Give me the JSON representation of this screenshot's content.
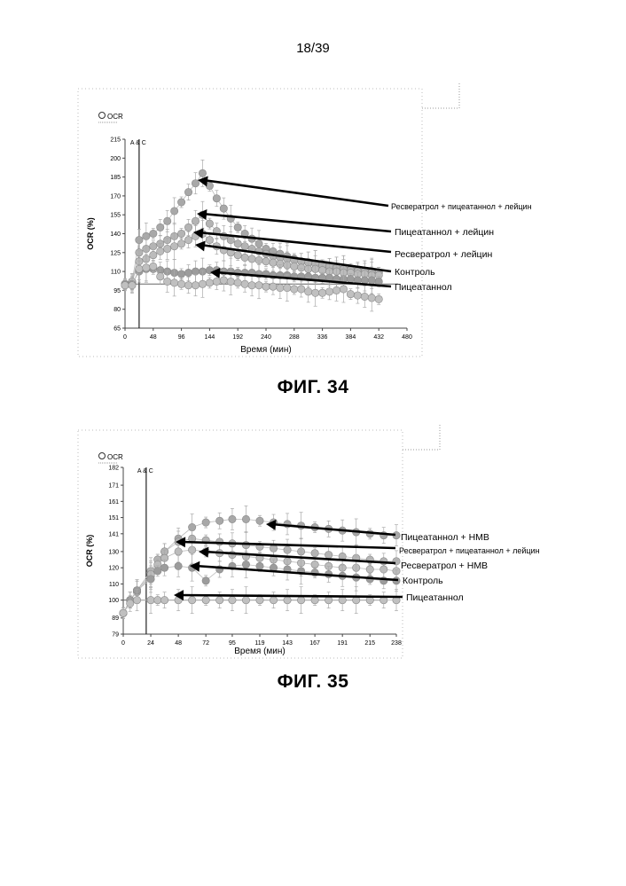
{
  "page_number": "18/39",
  "figures": [
    {
      "caption": "ФИГ. 34",
      "legend_label": "OCR",
      "marker_label": "A & C",
      "annotations": [
        "Ресвератрол + пицеатаннол + лейцин",
        "Пицеатаннол + лейцин",
        "Ресвератрол + лейцин",
        "Контроль",
        "Пицеатаннол"
      ]
    },
    {
      "caption": "ФИГ. 35",
      "legend_label": "OCR",
      "marker_label": "A & C",
      "annotations": [
        "Пицеатаннол + HMB",
        "Ресвератрол + пицеатаннол + лейцин",
        "Ресвератрол + HMB",
        "Контроль",
        "Пицеатаннол"
      ]
    }
  ],
  "chart_data": [
    {
      "type": "scatter",
      "title": "",
      "xlabel": "Время (мин)",
      "ylabel": "OCR (%)",
      "x_ticks": [
        0,
        48,
        96,
        144,
        192,
        240,
        288,
        336,
        384,
        432,
        480
      ],
      "y_ticks": [
        65,
        80,
        95,
        110,
        125,
        140,
        155,
        170,
        185,
        200,
        215
      ],
      "xlim": [
        0,
        480
      ],
      "ylim": [
        65,
        215
      ],
      "grid": false,
      "marker_x": 24,
      "series": [
        {
          "name": "Ресвератрол + пицеатаннол + лейцин",
          "x": [
            0,
            12,
            24,
            36,
            48,
            60,
            72,
            84,
            96,
            108,
            120,
            132,
            144,
            156,
            168,
            180,
            192,
            204,
            216,
            228,
            240,
            252,
            264,
            276,
            288,
            300,
            312,
            324,
            336,
            348,
            360,
            372,
            384,
            396,
            408,
            420,
            432
          ],
          "y": [
            100,
            102,
            135,
            138,
            140,
            145,
            150,
            158,
            165,
            173,
            180,
            188,
            178,
            168,
            160,
            152,
            145,
            140,
            136,
            132,
            128,
            126,
            124,
            122,
            120,
            118,
            117,
            116,
            115,
            114,
            113,
            112,
            112,
            111,
            110,
            110,
            109
          ]
        },
        {
          "name": "Пицеатаннол + лейцин",
          "x": [
            0,
            12,
            24,
            36,
            48,
            60,
            72,
            84,
            96,
            108,
            120,
            132,
            144,
            156,
            168,
            180,
            192,
            204,
            216,
            228,
            240,
            252,
            264,
            276,
            288,
            300,
            312,
            324,
            336,
            348,
            360,
            372,
            384,
            396,
            408,
            420,
            432
          ],
          "y": [
            99,
            101,
            125,
            128,
            130,
            132,
            135,
            138,
            140,
            145,
            150,
            155,
            148,
            142,
            138,
            135,
            132,
            130,
            128,
            126,
            124,
            122,
            121,
            120,
            119,
            118,
            117,
            116,
            115,
            114,
            113,
            112,
            111,
            110,
            110,
            109,
            109
          ]
        },
        {
          "name": "Ресвератрол + лейцин",
          "x": [
            0,
            12,
            24,
            36,
            48,
            60,
            72,
            84,
            96,
            108,
            120,
            132,
            144,
            156,
            168,
            180,
            192,
            204,
            216,
            228,
            240,
            252,
            264,
            276,
            288,
            300,
            312,
            324,
            336,
            348,
            360,
            372,
            384,
            396,
            408,
            420,
            432
          ],
          "y": [
            100,
            102,
            118,
            120,
            123,
            126,
            128,
            130,
            132,
            135,
            138,
            140,
            135,
            130,
            127,
            125,
            123,
            121,
            120,
            119,
            118,
            117,
            116,
            115,
            114,
            113,
            112,
            112,
            111,
            110,
            110,
            109,
            109,
            108,
            108,
            107,
            107
          ]
        },
        {
          "name": "Контроль",
          "x": [
            0,
            12,
            24,
            36,
            48,
            60,
            72,
            84,
            96,
            108,
            120,
            132,
            144,
            156,
            168,
            180,
            192,
            204,
            216,
            228,
            240,
            252,
            264,
            276,
            288,
            300,
            312,
            324,
            336,
            348,
            360,
            372,
            384,
            396,
            408,
            420,
            432
          ],
          "y": [
            100,
            100,
            110,
            112,
            112,
            111,
            110,
            109,
            108,
            109,
            110,
            110,
            111,
            111,
            110,
            110,
            109,
            109,
            109,
            108,
            108,
            107,
            107,
            107,
            106,
            106,
            106,
            105,
            105,
            105,
            104,
            104,
            104,
            103,
            103,
            103,
            102
          ]
        },
        {
          "name": "Пицеатаннол",
          "x": [
            0,
            12,
            24,
            36,
            48,
            60,
            72,
            84,
            96,
            108,
            120,
            132,
            144,
            156,
            168,
            180,
            192,
            204,
            216,
            228,
            240,
            252,
            264,
            276,
            288,
            300,
            312,
            324,
            336,
            348,
            360,
            372,
            384,
            396,
            408,
            420,
            432
          ],
          "y": [
            99,
            99,
            112,
            113,
            114,
            106,
            102,
            101,
            100,
            99,
            99,
            100,
            101,
            102,
            103,
            102,
            101,
            100,
            99,
            99,
            98,
            98,
            97,
            97,
            96,
            96,
            94,
            93,
            93,
            94,
            95,
            96,
            92,
            91,
            90,
            89,
            88
          ]
        }
      ]
    },
    {
      "type": "scatter",
      "title": "",
      "xlabel": "Время (мин)",
      "ylabel": "OCR (%)",
      "x_ticks": [
        0,
        24,
        48,
        72,
        95,
        119,
        143,
        167,
        191,
        215,
        238
      ],
      "y_ticks": [
        79,
        89,
        100,
        110,
        120,
        130,
        141,
        151,
        161,
        171,
        182
      ],
      "xlim": [
        0,
        238
      ],
      "ylim": [
        79,
        182
      ],
      "grid": false,
      "marker_x": 20,
      "series": [
        {
          "name": "Пицеатаннол + HMB",
          "x": [
            0,
            6,
            12,
            24,
            30,
            36,
            48,
            60,
            72,
            84,
            95,
            107,
            119,
            131,
            143,
            155,
            167,
            179,
            191,
            203,
            215,
            227,
            238
          ],
          "y": [
            92,
            100,
            105,
            115,
            125,
            130,
            138,
            145,
            148,
            149,
            150,
            150,
            149,
            148,
            147,
            146,
            145,
            144,
            143,
            142,
            141,
            140,
            140
          ]
        },
        {
          "name": "Ресвератрол + пицеатаннол + лейцин",
          "x": [
            0,
            6,
            12,
            24,
            30,
            36,
            48,
            60,
            72,
            84,
            95,
            107,
            119,
            131,
            143,
            155,
            167,
            179,
            191,
            203,
            215,
            227,
            238
          ],
          "y": [
            92,
            100,
            106,
            118,
            125,
            130,
            136,
            138,
            137,
            136,
            135,
            134,
            133,
            132,
            131,
            130,
            129,
            128,
            127,
            126,
            125,
            124,
            124
          ]
        },
        {
          "name": "Ресвератрол + HMB",
          "x": [
            0,
            6,
            12,
            24,
            30,
            36,
            48,
            60,
            72,
            84,
            95,
            107,
            119,
            131,
            143,
            155,
            167,
            179,
            191,
            203,
            215,
            227,
            238
          ],
          "y": [
            92,
            100,
            106,
            116,
            122,
            126,
            130,
            131,
            130,
            129,
            128,
            127,
            126,
            125,
            124,
            123,
            122,
            121,
            120,
            120,
            119,
            119,
            118
          ]
        },
        {
          "name": "Контроль",
          "x": [
            0,
            6,
            12,
            24,
            30,
            36,
            48,
            60,
            72,
            84,
            95,
            107,
            119,
            131,
            143,
            155,
            167,
            179,
            191,
            203,
            215,
            227,
            238
          ],
          "y": [
            92,
            100,
            106,
            113,
            118,
            120,
            121,
            120,
            112,
            119,
            121,
            122,
            121,
            120,
            119,
            118,
            117,
            116,
            115,
            114,
            113,
            112,
            112
          ]
        },
        {
          "name": "Пицеатаннол",
          "x": [
            0,
            6,
            12,
            24,
            30,
            36,
            48,
            60,
            72,
            84,
            95,
            107,
            119,
            131,
            143,
            155,
            167,
            179,
            191,
            203,
            215,
            227,
            238
          ],
          "y": [
            92,
            98,
            100,
            100,
            100,
            100,
            100,
            100,
            100,
            100,
            100,
            100,
            100,
            100,
            100,
            100,
            100,
            100,
            100,
            100,
            100,
            100,
            100
          ]
        }
      ]
    }
  ]
}
